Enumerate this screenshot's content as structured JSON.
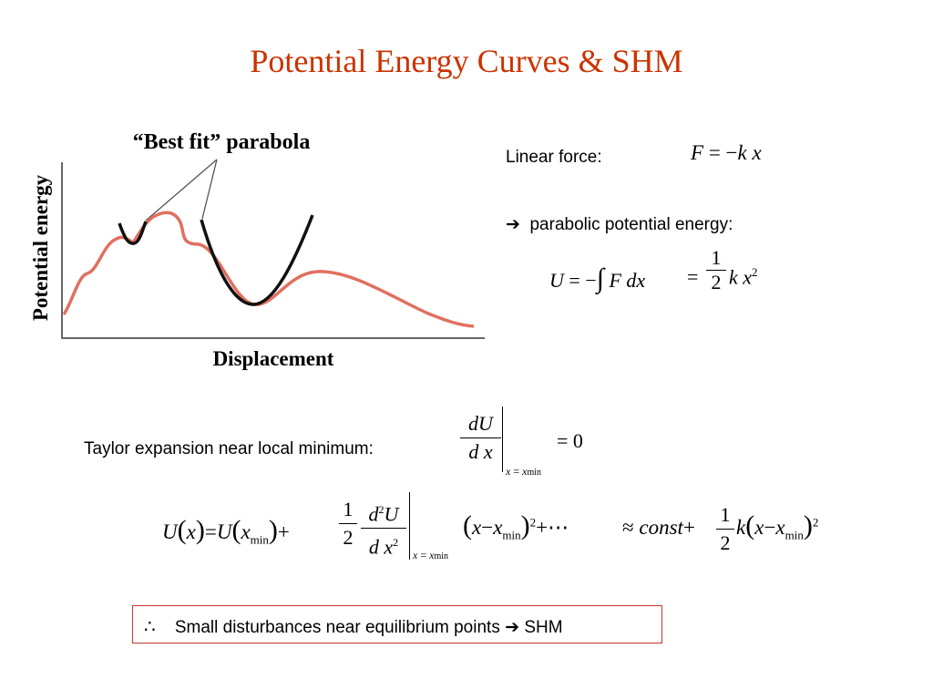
{
  "title": "Potential Energy Curves & SHM",
  "figure": {
    "callout": "“Best fit” parabola",
    "y_axis_label": "Potential energy",
    "x_axis_label": "Displacement",
    "colors": {
      "curve": "#e07060",
      "parabola": "#111111",
      "axes": "#333333"
    }
  },
  "linear_force": {
    "label": "Linear force:",
    "eq": {
      "F": "F",
      "eq": "=",
      "minus": "−",
      "k": "k",
      "x": "x"
    }
  },
  "parabolic": {
    "arrow": "➔",
    "label": "parabolic potential energy:",
    "eq": {
      "U": "U",
      "eq": "=",
      "minus": "−",
      "int": "∫",
      "F": "F",
      "d": "d",
      "x": "x",
      "eq2": "=",
      "one": "1",
      "two": "2",
      "k": "k",
      "x2": "x",
      "sq": "2"
    }
  },
  "taylor": {
    "label": "Taylor expansion near local minimum:",
    "deriv": {
      "d": "d",
      "U": "U",
      "dx_d": "d",
      "dx_x": "x",
      "sub_x": "x",
      "sub_eq": "=",
      "sub_x2": "x",
      "sub_min": "min",
      "eq": "=",
      "zero": "0"
    }
  },
  "expansion": {
    "U": "U",
    "lp": "(",
    "x": "x",
    "rp": ")",
    "eq": "=",
    "U2": "U",
    "lp2": "(",
    "xmin": "x",
    "min": "min",
    "rp2": ")",
    "plus": "+",
    "one": "1",
    "two": "2",
    "d2": "d",
    "sup2": "2",
    "Ud": "U",
    "dd": "d",
    "xd": "x",
    "sup2b": "2",
    "sub_x": "x",
    "sub_eq": "=",
    "sub_x2": "x",
    "sub_min": "min",
    "lp3": "(",
    "x3": "x",
    "minus": "−",
    "x4": "x",
    "min3": "min",
    "rp3": ")",
    "sq": "2",
    "plusdots": "+⋯",
    "approx": "≈",
    "const": "const",
    "plus2": "+",
    "one2": "1",
    "two2": "2",
    "k": "k",
    "lp4": "(",
    "x5": "x",
    "minus2": "−",
    "x6": "x",
    "min4": "min",
    "rp4": ")",
    "sq2": "2"
  },
  "conclusion": {
    "therefore": "∴",
    "text": "Small disturbances near equilibrium points",
    "arrow": "➔",
    "result": "SHM"
  }
}
